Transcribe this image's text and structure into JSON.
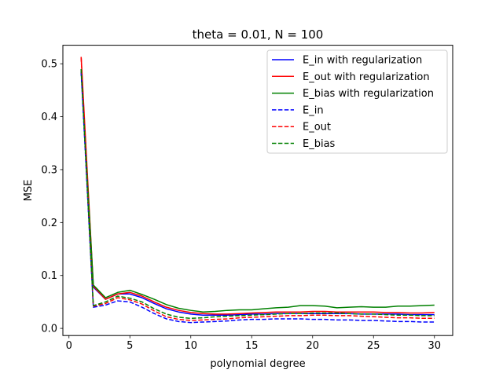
{
  "chart_data": {
    "type": "line",
    "title": "theta = 0.01, N = 100",
    "xlabel": "polynomial degree",
    "ylabel": "MSE",
    "xlim": [
      -0.5,
      31.5
    ],
    "ylim": [
      -0.0135,
      0.535
    ],
    "xticks": [
      0,
      5,
      10,
      15,
      20,
      25,
      30
    ],
    "yticks": [
      0.0,
      0.1,
      0.2,
      0.3,
      0.4,
      0.5
    ],
    "ytick_labels": [
      "0.0",
      "0.1",
      "0.2",
      "0.3",
      "0.4",
      "0.5"
    ],
    "grid": false,
    "legend_position": "top-right",
    "x": [
      1,
      2,
      3,
      4,
      5,
      6,
      7,
      8,
      9,
      10,
      11,
      12,
      13,
      14,
      15,
      16,
      17,
      18,
      19,
      20,
      21,
      22,
      23,
      24,
      25,
      26,
      27,
      28,
      29,
      30
    ],
    "series": [
      {
        "name": "E_in with regularization",
        "color": "#0000ff",
        "dashed": false,
        "values": [
          0.485,
          0.078,
          0.055,
          0.065,
          0.065,
          0.058,
          0.047,
          0.037,
          0.031,
          0.027,
          0.025,
          0.025,
          0.025,
          0.026,
          0.027,
          0.027,
          0.028,
          0.028,
          0.028,
          0.028,
          0.028,
          0.028,
          0.028,
          0.027,
          0.027,
          0.027,
          0.027,
          0.026,
          0.026,
          0.026
        ]
      },
      {
        "name": "E_out with regularization",
        "color": "#ff0000",
        "dashed": false,
        "values": [
          0.513,
          0.08,
          0.055,
          0.065,
          0.068,
          0.061,
          0.05,
          0.04,
          0.034,
          0.03,
          0.028,
          0.027,
          0.027,
          0.028,
          0.029,
          0.03,
          0.031,
          0.031,
          0.031,
          0.032,
          0.032,
          0.031,
          0.031,
          0.031,
          0.031,
          0.03,
          0.03,
          0.029,
          0.029,
          0.03
        ]
      },
      {
        "name": "E_bias with regularization",
        "color": "#008000",
        "dashed": false,
        "values": [
          0.49,
          0.082,
          0.058,
          0.068,
          0.072,
          0.064,
          0.055,
          0.045,
          0.038,
          0.034,
          0.031,
          0.032,
          0.034,
          0.035,
          0.035,
          0.037,
          0.039,
          0.04,
          0.043,
          0.043,
          0.042,
          0.039,
          0.04,
          0.041,
          0.04,
          0.04,
          0.042,
          0.042,
          0.043,
          0.044
        ]
      },
      {
        "name": "E_in",
        "color": "#0000ff",
        "dashed": true,
        "values": [
          0.485,
          0.04,
          0.044,
          0.052,
          0.05,
          0.04,
          0.028,
          0.018,
          0.013,
          0.011,
          0.012,
          0.013,
          0.014,
          0.016,
          0.017,
          0.017,
          0.018,
          0.018,
          0.018,
          0.017,
          0.017,
          0.016,
          0.016,
          0.015,
          0.015,
          0.014,
          0.013,
          0.013,
          0.012,
          0.012
        ]
      },
      {
        "name": "E_out",
        "color": "#ff0000",
        "dashed": true,
        "values": [
          0.512,
          0.042,
          0.047,
          0.058,
          0.054,
          0.046,
          0.033,
          0.022,
          0.017,
          0.015,
          0.016,
          0.017,
          0.018,
          0.02,
          0.021,
          0.022,
          0.023,
          0.024,
          0.024,
          0.025,
          0.025,
          0.024,
          0.024,
          0.023,
          0.022,
          0.021,
          0.02,
          0.02,
          0.019,
          0.019
        ]
      },
      {
        "name": "E_bias",
        "color": "#008000",
        "dashed": true,
        "values": [
          0.49,
          0.043,
          0.05,
          0.061,
          0.057,
          0.05,
          0.037,
          0.027,
          0.021,
          0.019,
          0.02,
          0.022,
          0.023,
          0.024,
          0.025,
          0.026,
          0.027,
          0.028,
          0.028,
          0.029,
          0.029,
          0.029,
          0.028,
          0.027,
          0.027,
          0.026,
          0.025,
          0.025,
          0.024,
          0.024
        ]
      }
    ]
  }
}
